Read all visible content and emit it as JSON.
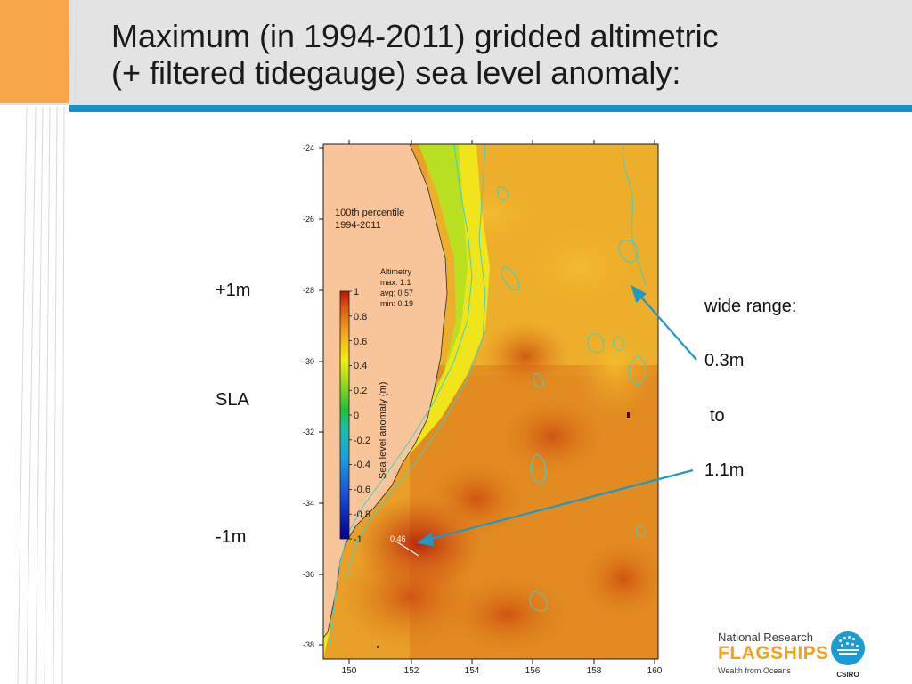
{
  "slide": {
    "title_line1": "Maximum (in 1994-2011) gridded altimetric",
    "title_line2": "(+ filtered tidegauge) sea level anomaly:"
  },
  "side_labels": {
    "plus": "+1m",
    "sla": "SLA",
    "minus": "-1m"
  },
  "notes": {
    "wide_range": "wide range:",
    "low": "0.3m",
    "to": "to",
    "high": "1.1m"
  },
  "map": {
    "y_ticks": [
      "-24",
      "-26",
      "-28",
      "-30",
      "-32",
      "-34",
      "-36",
      "-38"
    ],
    "x_ticks": [
      "150",
      "152",
      "154",
      "156",
      "158",
      "160"
    ],
    "caption_line1": "100th percentile",
    "caption_line2": "1994-2011",
    "stats": {
      "line1": "Altimetry",
      "line2": "max: 1.1",
      "line3": "avg: 0.57",
      "line4": "min: 0.19"
    },
    "colorbar_ticks": [
      "1",
      "0.8",
      "0.6",
      "0.4",
      "0.2",
      "0",
      "-0.2",
      "-0.4",
      "-0.6",
      "-0.8",
      "-1"
    ],
    "colorbar_label": "Sea level anomaly (m)",
    "point_value": "0.46"
  },
  "logo": {
    "line1": "National Research",
    "line2": "FLAGSHIPS",
    "line3": "Wealth from Oceans",
    "csiro": "CSIRO"
  },
  "colors": {
    "accent": "#1a8fc7",
    "orange": "#f7a64a",
    "land": "#f8c59a",
    "arrow": "#1f98c4"
  }
}
